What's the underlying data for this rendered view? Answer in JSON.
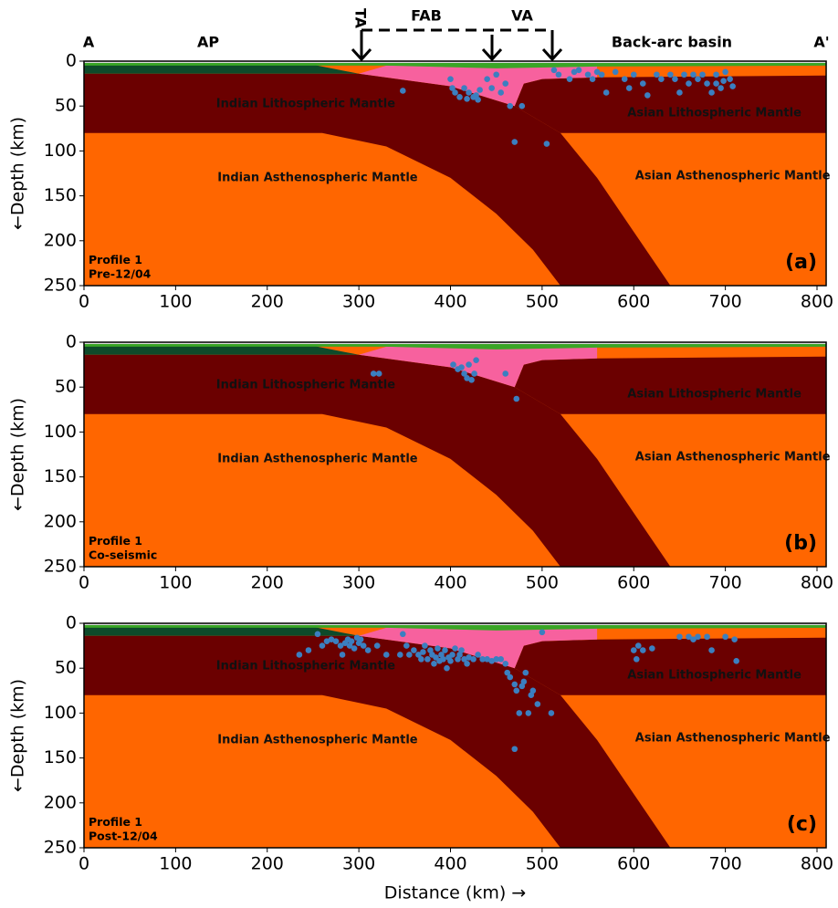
{
  "chart_data": [
    {
      "type": "scatter",
      "color": "#3b7fc0",
      "ylabel": "←Depth (km)",
      "panel_label": "(a)",
      "profile": "Profile 1",
      "period": "Pre-12/04",
      "top_labels": [
        "A",
        "AP",
        "TA",
        "FAB",
        "VA",
        "Back-arc basin",
        "A'"
      ],
      "regions": [
        "Indian Lithospheric Mantle",
        "Asian Lithospheric Mantle",
        "Indian Asthenospheric Mantle",
        "Asian Asthenospheric Mantle"
      ],
      "xlim": [
        0,
        810
      ],
      "ylim": [
        250,
        0
      ],
      "xticks": [
        0,
        100,
        200,
        300,
        400,
        500,
        600,
        700,
        800
      ],
      "yticks": [
        0,
        50,
        100,
        150,
        200,
        250
      ],
      "x": [
        348,
        400,
        402,
        405,
        410,
        415,
        418,
        420,
        425,
        428,
        430,
        432,
        440,
        445,
        450,
        455,
        460,
        465,
        470,
        478,
        505,
        513,
        518,
        530,
        535,
        540,
        550,
        555,
        560,
        565,
        570,
        580,
        590,
        595,
        600,
        610,
        615,
        625,
        630,
        640,
        645,
        650,
        655,
        660,
        665,
        670,
        675,
        680,
        685,
        690,
        695,
        700,
        705,
        708,
        698,
        690
      ],
      "y": [
        33,
        20,
        30,
        35,
        40,
        30,
        42,
        35,
        40,
        38,
        43,
        32,
        20,
        30,
        15,
        35,
        25,
        50,
        90,
        50,
        92,
        10,
        15,
        20,
        12,
        10,
        15,
        20,
        12,
        15,
        35,
        12,
        20,
        30,
        15,
        25,
        38,
        15,
        20,
        15,
        20,
        35,
        15,
        25,
        15,
        20,
        15,
        25,
        35,
        15,
        30,
        12,
        20,
        28,
        22,
        25
      ]
    },
    {
      "type": "scatter",
      "color": "#3b7fc0",
      "ylabel": "←Depth (km)",
      "panel_label": "(b)",
      "profile": "Profile 1",
      "period": "Co-seismic",
      "regions": [
        "Indian Lithospheric Mantle",
        "Asian Lithospheric Mantle",
        "Indian Asthenospheric Mantle",
        "Asian Asthenospheric Mantle"
      ],
      "xlim": [
        0,
        810
      ],
      "ylim": [
        250,
        0
      ],
      "xticks": [
        0,
        100,
        200,
        300,
        400,
        500,
        600,
        700,
        800
      ],
      "yticks": [
        0,
        50,
        100,
        150,
        200,
        250
      ],
      "x": [
        316,
        322,
        403,
        408,
        412,
        415,
        418,
        420,
        423,
        426,
        428,
        460,
        472
      ],
      "y": [
        35,
        35,
        25,
        30,
        28,
        35,
        40,
        25,
        42,
        35,
        20,
        35,
        63
      ]
    },
    {
      "type": "scatter",
      "color": "#3b7fc0",
      "ylabel": "←Depth (km)",
      "xlabel": "Distance (km) →",
      "panel_label": "(c)",
      "profile": "Profile 1",
      "period": "Post-12/04",
      "regions": [
        "Indian Lithospheric Mantle",
        "Asian Lithospheric Mantle",
        "Indian Asthenospheric Mantle",
        "Asian Asthenospheric Mantle"
      ],
      "xlim": [
        0,
        810
      ],
      "ylim": [
        250,
        0
      ],
      "xticks": [
        0,
        100,
        200,
        300,
        400,
        500,
        600,
        700,
        800
      ],
      "yticks": [
        0,
        50,
        100,
        150,
        200,
        250
      ],
      "x": [
        235,
        245,
        255,
        260,
        265,
        270,
        275,
        280,
        282,
        285,
        288,
        290,
        292,
        295,
        298,
        300,
        302,
        305,
        310,
        320,
        330,
        345,
        348,
        352,
        355,
        360,
        365,
        368,
        370,
        372,
        375,
        378,
        380,
        382,
        384,
        386,
        388,
        390,
        392,
        394,
        396,
        398,
        400,
        402,
        405,
        408,
        410,
        412,
        415,
        418,
        420,
        425,
        430,
        435,
        440,
        445,
        450,
        455,
        460,
        462,
        465,
        470,
        472,
        475,
        478,
        480,
        482,
        485,
        488,
        490,
        495,
        500,
        510,
        470,
        600,
        603,
        605,
        610,
        620,
        650,
        660,
        665,
        670,
        680,
        685,
        700,
        710,
        712
      ],
      "y": [
        35,
        30,
        12,
        25,
        20,
        18,
        20,
        25,
        35,
        22,
        18,
        25,
        20,
        28,
        16,
        22,
        18,
        25,
        30,
        25,
        35,
        35,
        12,
        25,
        35,
        30,
        35,
        40,
        32,
        25,
        40,
        30,
        35,
        45,
        38,
        28,
        42,
        35,
        40,
        30,
        50,
        38,
        42,
        35,
        28,
        40,
        35,
        30,
        40,
        45,
        38,
        40,
        35,
        40,
        40,
        42,
        40,
        40,
        45,
        55,
        60,
        68,
        75,
        100,
        70,
        65,
        55,
        100,
        80,
        75,
        90,
        10,
        100,
        140,
        30,
        40,
        25,
        30,
        28,
        15,
        15,
        18,
        15,
        15,
        30,
        15,
        18,
        42
      ]
    }
  ]
}
